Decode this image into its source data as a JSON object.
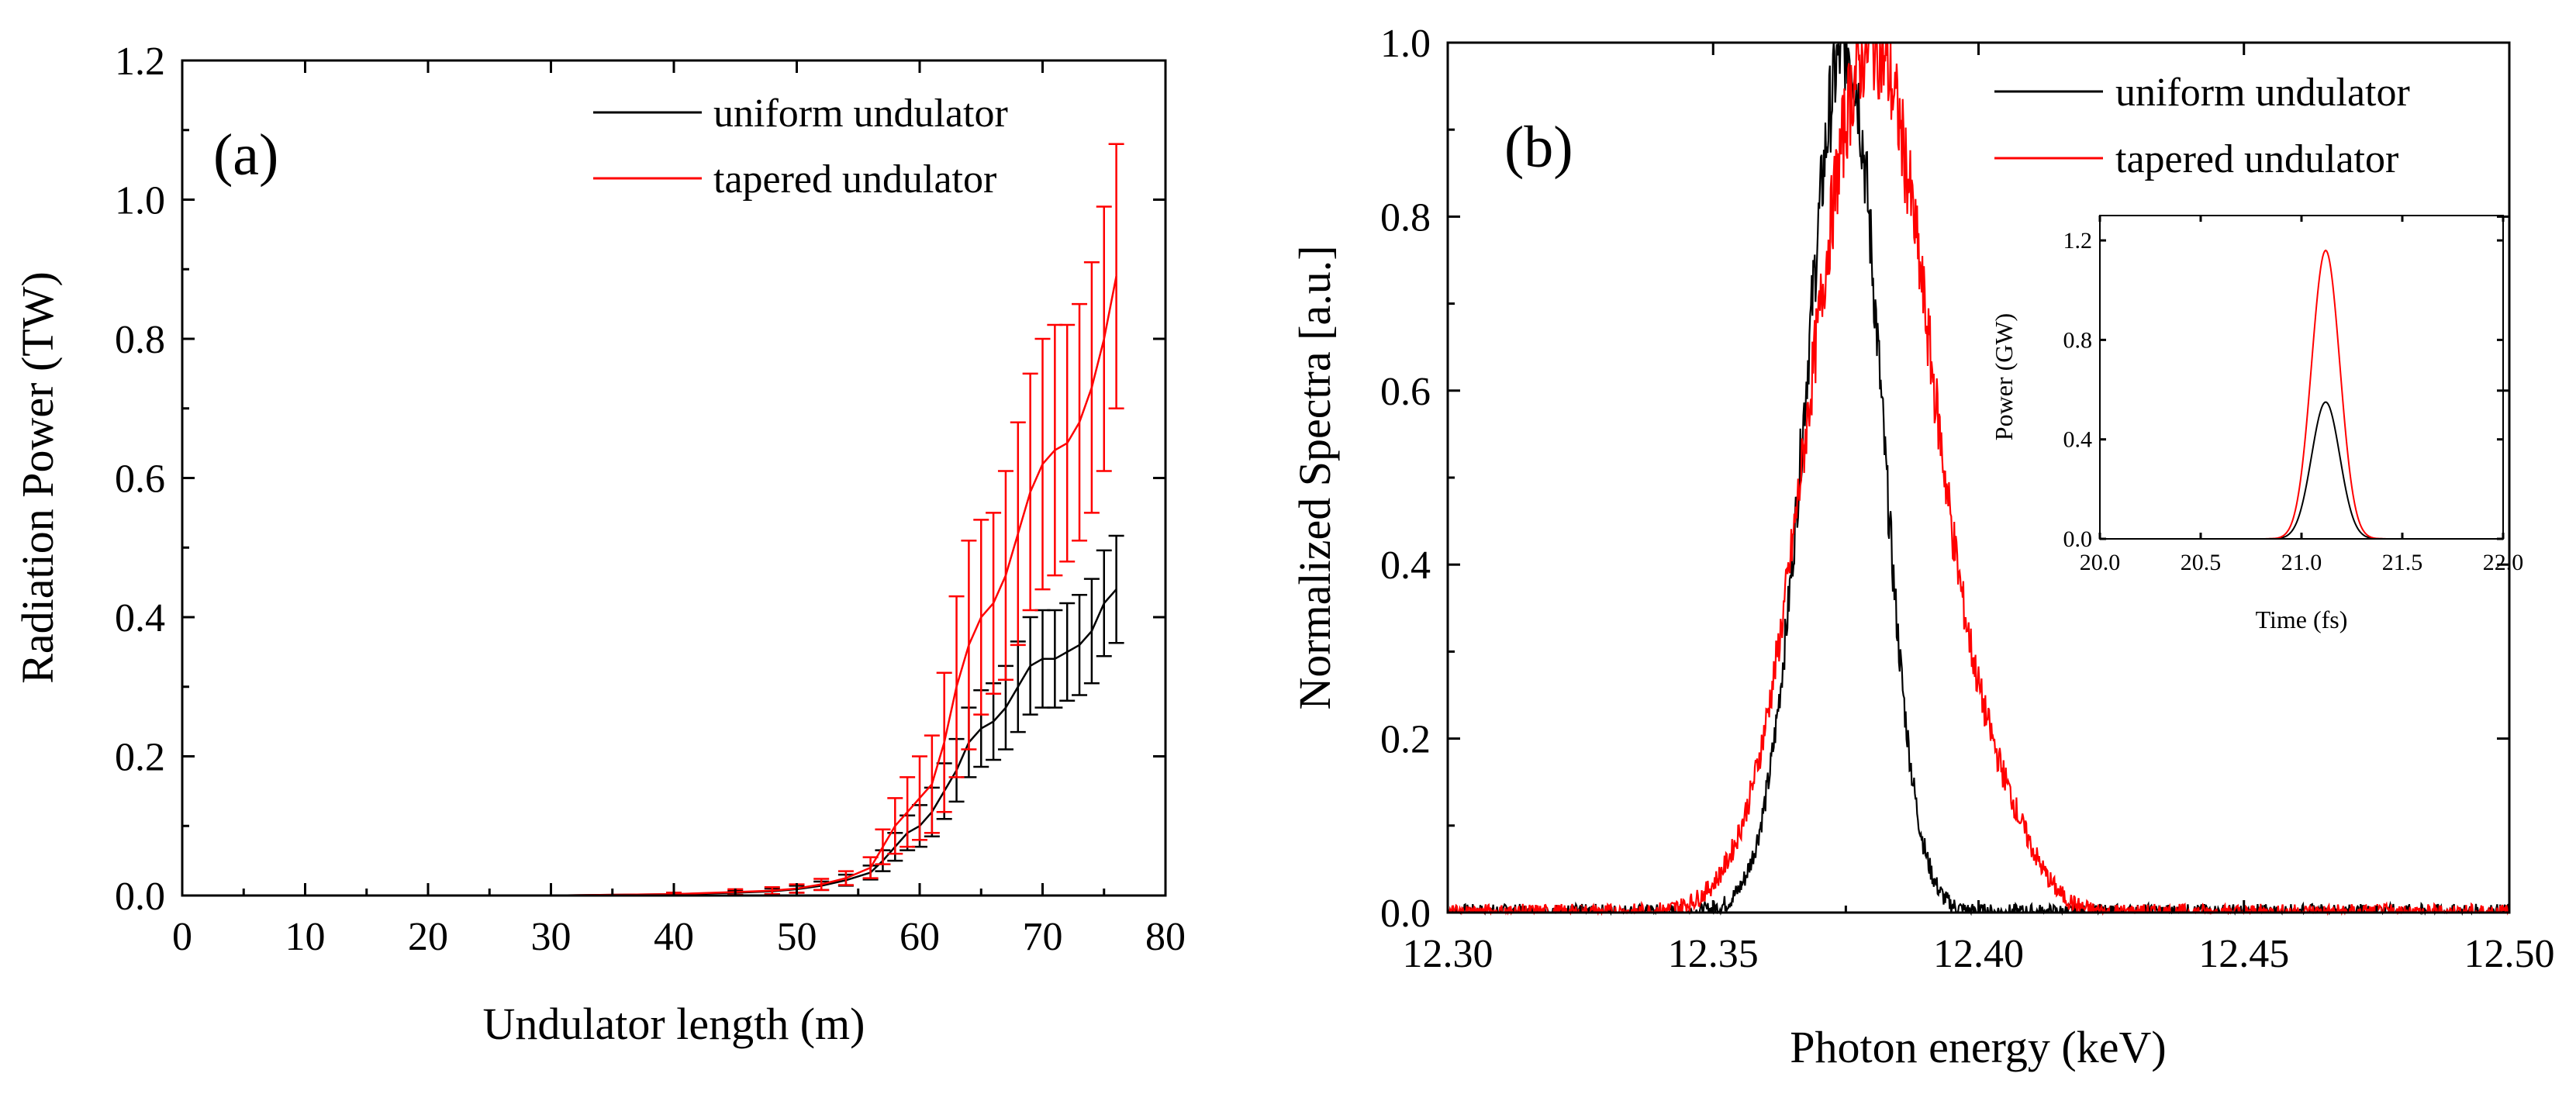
{
  "chart_data": [
    {
      "type": "line",
      "panel_label": "(a)",
      "xlabel": "Undulator length (m)",
      "ylabel": "Radiation Power (TW)",
      "xlim": [
        0,
        80
      ],
      "ylim": [
        0,
        1.2
      ],
      "xticks": [
        "0",
        "10",
        "20",
        "30",
        "40",
        "50",
        "60",
        "70",
        "80"
      ],
      "yticks": [
        "0.0",
        "0.2",
        "0.4",
        "0.6",
        "0.8",
        "1.0",
        "1.2"
      ],
      "legend_position": "top-right",
      "error_bars": true,
      "series": [
        {
          "name": "uniform undulator",
          "color": "#000000",
          "x": [
            0,
            10,
            20,
            30,
            40,
            45,
            48,
            50,
            52,
            54,
            56,
            57,
            58,
            59,
            60,
            61,
            62,
            63,
            64,
            65,
            66,
            67,
            68,
            69,
            70,
            71,
            72,
            73,
            74,
            75,
            76
          ],
          "y": [
            0,
            0,
            0,
            0,
            0.002,
            0.004,
            0.006,
            0.009,
            0.014,
            0.022,
            0.033,
            0.05,
            0.07,
            0.09,
            0.1,
            0.12,
            0.15,
            0.18,
            0.22,
            0.24,
            0.25,
            0.27,
            0.3,
            0.33,
            0.34,
            0.34,
            0.35,
            0.36,
            0.38,
            0.42,
            0.44
          ],
          "err": [
            0,
            0,
            0,
            0,
            0.002,
            0.003,
            0.004,
            0.005,
            0.006,
            0.008,
            0.01,
            0.015,
            0.02,
            0.025,
            0.03,
            0.035,
            0.04,
            0.045,
            0.05,
            0.055,
            0.055,
            0.06,
            0.065,
            0.07,
            0.07,
            0.07,
            0.07,
            0.072,
            0.075,
            0.076,
            0.077
          ]
        },
        {
          "name": "tapered undulator",
          "color": "#ff0000",
          "x": [
            0,
            10,
            20,
            30,
            40,
            45,
            48,
            50,
            52,
            54,
            56,
            57,
            58,
            59,
            60,
            61,
            62,
            63,
            64,
            65,
            66,
            67,
            68,
            69,
            70,
            71,
            72,
            73,
            74,
            75,
            76
          ],
          "y": [
            0,
            0,
            0,
            0,
            0.002,
            0.005,
            0.007,
            0.01,
            0.016,
            0.025,
            0.04,
            0.07,
            0.1,
            0.12,
            0.14,
            0.16,
            0.22,
            0.3,
            0.36,
            0.4,
            0.42,
            0.46,
            0.52,
            0.58,
            0.62,
            0.64,
            0.65,
            0.68,
            0.73,
            0.8,
            0.89
          ],
          "err": [
            0,
            0,
            0,
            0,
            0.002,
            0.004,
            0.005,
            0.006,
            0.008,
            0.01,
            0.015,
            0.025,
            0.04,
            0.05,
            0.06,
            0.07,
            0.1,
            0.13,
            0.15,
            0.14,
            0.13,
            0.15,
            0.16,
            0.17,
            0.18,
            0.18,
            0.17,
            0.17,
            0.18,
            0.19,
            0.19
          ]
        }
      ]
    },
    {
      "type": "line",
      "panel_label": "(b)",
      "xlabel": "Photon energy (keV)",
      "ylabel": "Normalized Spectra [a.u.]",
      "xlim": [
        12.3,
        12.5
      ],
      "ylim": [
        0,
        1.0
      ],
      "xticks": [
        "12.30",
        "12.35",
        "12.40",
        "12.45",
        "12.50"
      ],
      "yticks": [
        "0.0",
        "0.2",
        "0.4",
        "0.6",
        "0.8",
        "1.0"
      ],
      "legend_position": "top-right",
      "series": [
        {
          "name": "uniform undulator",
          "color": "#000000",
          "center": 12.375,
          "sigma_left": 0.0075,
          "sigma_right": 0.0065,
          "peak": 1.0
        },
        {
          "name": "tapered undulator",
          "color": "#ff0000",
          "center": 12.38,
          "sigma_left": 0.0115,
          "sigma_right": 0.0115,
          "peak": 1.0,
          "shoulder_keV": 12.405,
          "shoulder_level": 0.06
        }
      ],
      "inset": {
        "type": "line",
        "xlabel": "Time (fs)",
        "ylabel": "Power (GW)",
        "xlim": [
          20.0,
          22.0
        ],
        "ylim": [
          0,
          1.3
        ],
        "xticks": [
          "20.0",
          "20.5",
          "21.0",
          "21.5",
          "22.0"
        ],
        "yticks": [
          "0.0",
          "0.4",
          "0.8",
          "1.2"
        ],
        "series": [
          {
            "name": "uniform undulator",
            "color": "#000000",
            "center": 21.12,
            "sigma": 0.07,
            "peak": 0.55
          },
          {
            "name": "tapered undulator",
            "color": "#ff0000",
            "center": 21.12,
            "sigma": 0.07,
            "peak": 1.16
          }
        ]
      }
    }
  ]
}
